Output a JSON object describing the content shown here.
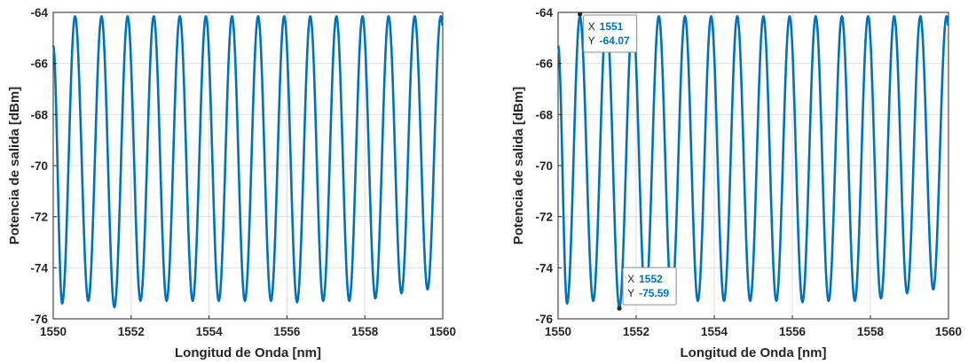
{
  "chart_data": [
    {
      "type": "line",
      "xlabel": "Longitud de Onda [nm]",
      "ylabel": "Potencia de salida [dBm]",
      "xlim": [
        1550,
        1560
      ],
      "ylim": [
        -76,
        -64
      ],
      "xticks": [
        "1550",
        "1552",
        "1554",
        "1556",
        "1558",
        "1560"
      ],
      "yticks": [
        "-64",
        "-66",
        "-68",
        "-70",
        "-72",
        "-74",
        "-76"
      ],
      "grid": true,
      "line_color": "#0072bd",
      "series": [
        {
          "peaks_x": [
            1550.56,
            1551.24,
            1551.91,
            1552.58,
            1553.25,
            1553.92,
            1554.59,
            1555.26,
            1555.93,
            1556.6,
            1557.27,
            1557.94,
            1558.61,
            1559.28,
            1559.95
          ],
          "peaks_y": -64.15,
          "troughs_x": [
            1550.23,
            1550.9,
            1551.57,
            1552.24,
            1552.91,
            1553.58,
            1554.25,
            1554.92,
            1555.59,
            1556.26,
            1556.93,
            1557.6,
            1558.27,
            1558.94,
            1559.61
          ],
          "troughs_y": [
            -75.4,
            -75.3,
            -75.55,
            -75.3,
            -75.3,
            -75.3,
            -75.3,
            -75.3,
            -75.3,
            -75.35,
            -75.3,
            -75.3,
            -75.2,
            -75.0,
            -74.85
          ],
          "start_y": -65.3,
          "end_y": -64.5
        }
      ],
      "datatips": []
    },
    {
      "type": "line",
      "xlabel": "Longitud de Onda [nm]",
      "ylabel": "Potencia de salida [dBm]",
      "xlim": [
        1550,
        1560
      ],
      "ylim": [
        -76,
        -64
      ],
      "xticks": [
        "1550",
        "1552",
        "1554",
        "1556",
        "1558",
        "1560"
      ],
      "yticks": [
        "-64",
        "-66",
        "-68",
        "-70",
        "-72",
        "-74",
        "-76"
      ],
      "grid": true,
      "line_color": "#0072bd",
      "series": [
        {
          "peaks_x": [
            1550.56,
            1551.24,
            1551.91,
            1552.58,
            1553.25,
            1553.92,
            1554.59,
            1555.26,
            1555.93,
            1556.6,
            1557.27,
            1557.94,
            1558.61,
            1559.28,
            1559.95
          ],
          "peaks_y": -64.15,
          "troughs_x": [
            1550.23,
            1550.9,
            1551.57,
            1552.24,
            1552.91,
            1553.58,
            1554.25,
            1554.92,
            1555.59,
            1556.26,
            1556.93,
            1557.6,
            1558.27,
            1558.94,
            1559.61
          ],
          "troughs_y": [
            -75.4,
            -75.3,
            -75.55,
            -75.3,
            -75.3,
            -75.3,
            -75.3,
            -75.3,
            -75.3,
            -75.35,
            -75.3,
            -75.3,
            -75.2,
            -75.0,
            -74.85
          ],
          "start_y": -65.3,
          "end_y": -64.5
        }
      ],
      "datatips": [
        {
          "x": 1550.56,
          "y": -64.07,
          "x_label": "X",
          "y_label": "Y",
          "x_text": "1551",
          "y_text": "-64.07"
        },
        {
          "x": 1551.57,
          "y": -75.59,
          "x_label": "X",
          "y_label": "Y",
          "x_text": "1552",
          "y_text": "-75.59"
        }
      ]
    }
  ]
}
